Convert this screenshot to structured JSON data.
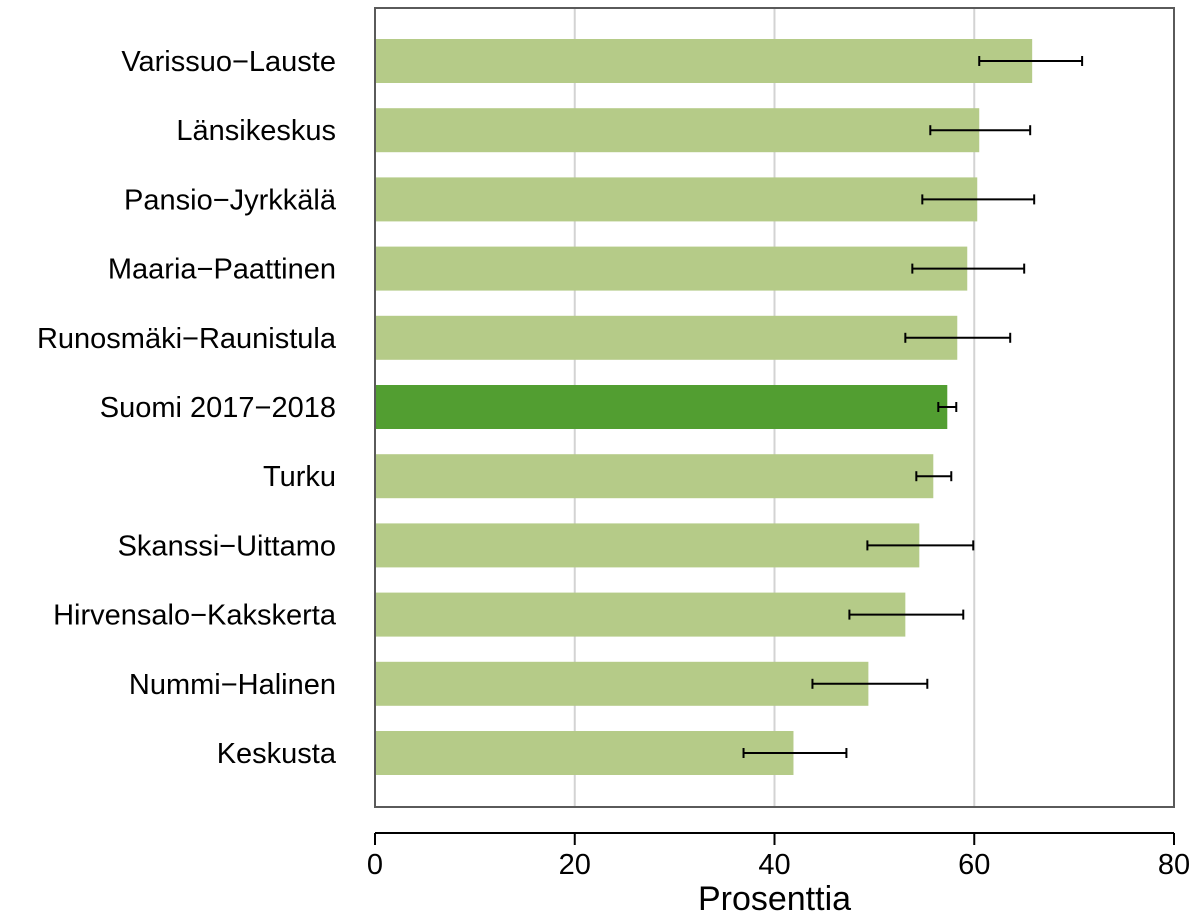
{
  "chart_data": {
    "type": "bar",
    "orientation": "horizontal",
    "categories": [
      "Varissuo−Lauste",
      "Länsikeskus",
      "Pansio−Jyrkkälä",
      "Maaria−Paattinen",
      "Runosmäki−Raunistula",
      "Suomi 2017−2018",
      "Turku",
      "Skanssi−Uittamo",
      "Hirvensalo−Kakskerta",
      "Nummi−Halinen",
      "Keskusta"
    ],
    "values": [
      65.8,
      60.5,
      60.3,
      59.3,
      58.3,
      57.3,
      55.9,
      54.5,
      53.1,
      49.4,
      41.9
    ],
    "error_low": [
      60.5,
      55.6,
      54.8,
      53.8,
      53.1,
      56.4,
      54.2,
      49.3,
      47.5,
      43.8,
      36.9
    ],
    "error_high": [
      70.8,
      65.6,
      66.0,
      65.0,
      63.6,
      58.2,
      57.7,
      59.9,
      58.9,
      55.3,
      47.2
    ],
    "highlight_index": 5,
    "xlabel": "Prosenttia",
    "ylabel": "",
    "xlim": [
      0,
      80
    ],
    "xticks": [
      0,
      20,
      40,
      60,
      80
    ],
    "grid": "vertical",
    "colors": {
      "bar": "#b5cb88",
      "highlight": "#529e31",
      "grid": "#d3d3d3",
      "frame": "#5a5a5a",
      "error": "#000000"
    }
  }
}
